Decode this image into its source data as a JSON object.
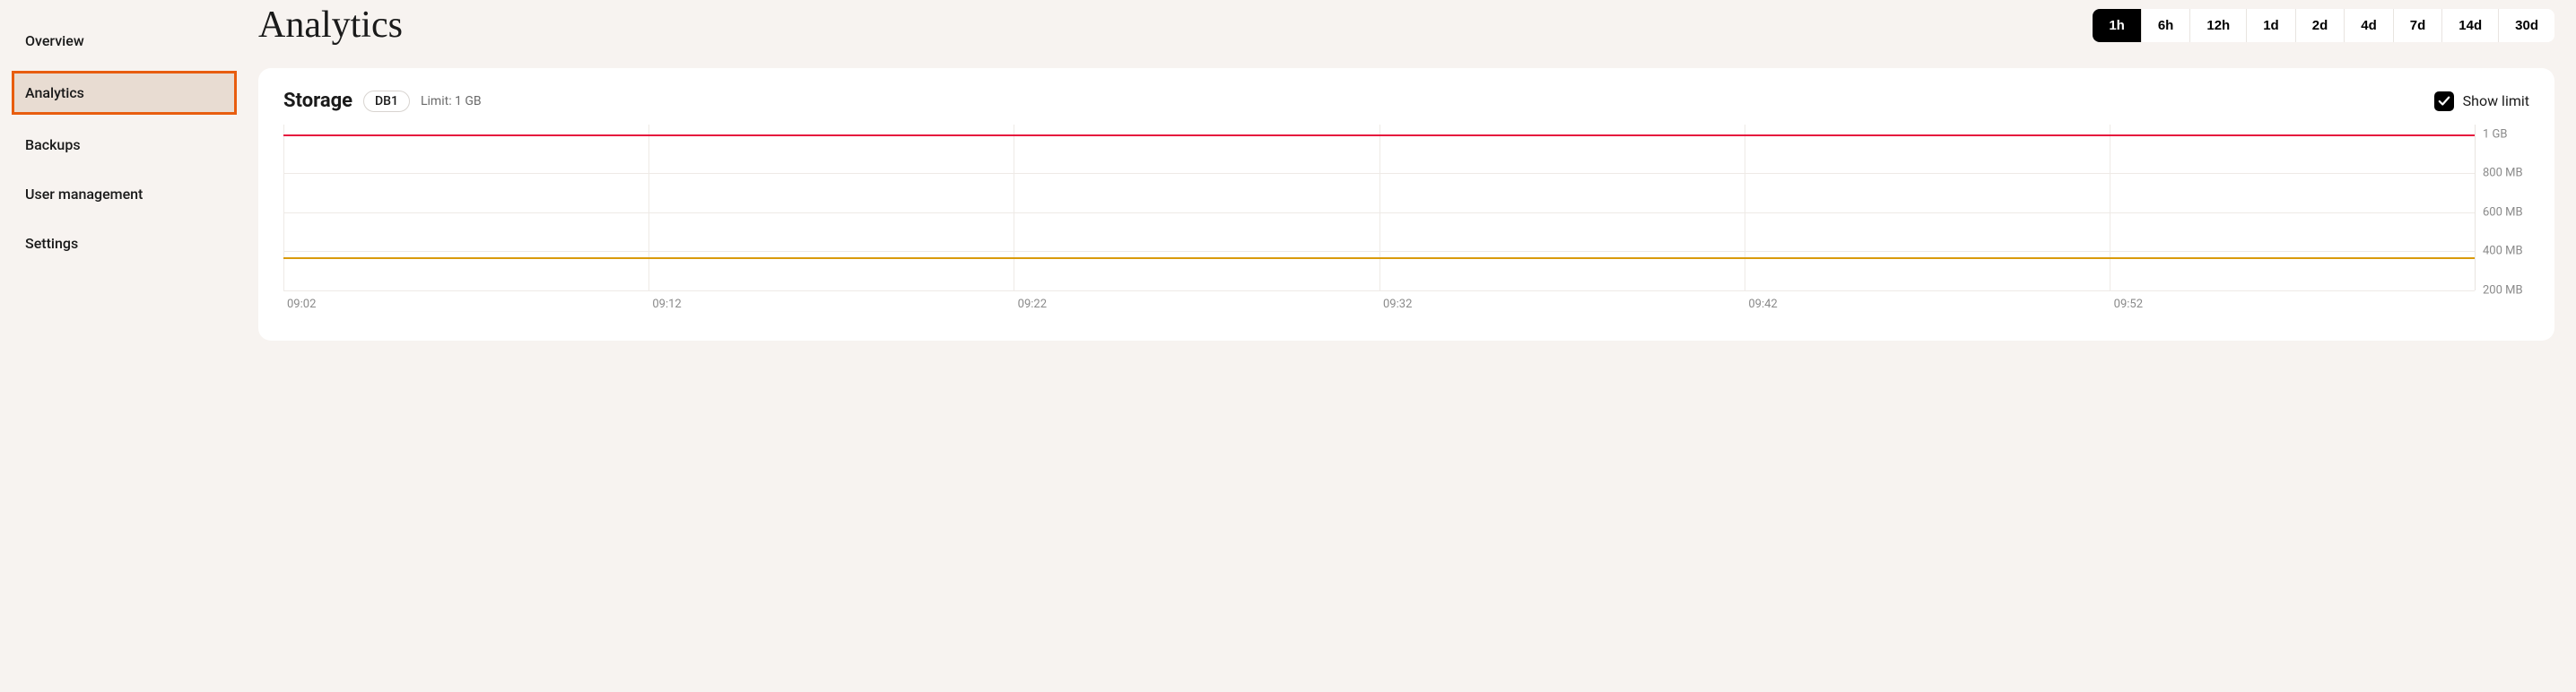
{
  "sidebar": {
    "items": [
      {
        "label": "Overview",
        "active": false
      },
      {
        "label": "Analytics",
        "active": true
      },
      {
        "label": "Backups",
        "active": false
      },
      {
        "label": "User management",
        "active": false
      },
      {
        "label": "Settings",
        "active": false
      }
    ]
  },
  "header": {
    "title": "Analytics"
  },
  "range": {
    "options": [
      "1h",
      "6h",
      "12h",
      "1d",
      "2d",
      "4d",
      "7d",
      "14d",
      "30d"
    ],
    "active": "1h"
  },
  "card": {
    "title": "Storage",
    "db_badge": "DB1",
    "limit_label": "Limit: 1 GB",
    "show_limit_label": "Show limit",
    "show_limit_checked": true
  },
  "chart": {
    "type": "line",
    "background_color": "#ffffff",
    "grid_color": "#eeeae6",
    "y_axis": {
      "min_mb": 200,
      "max_mb": 1050,
      "ticks": [
        {
          "label": "1 GB",
          "value_mb": 1000
        },
        {
          "label": "800 MB",
          "value_mb": 800
        },
        {
          "label": "600 MB",
          "value_mb": 600
        },
        {
          "label": "400 MB",
          "value_mb": 400
        },
        {
          "label": "200 MB",
          "value_mb": 200
        }
      ],
      "label_color": "#8a8a8a",
      "label_fontsize": 13
    },
    "x_axis": {
      "ticks": [
        "09:02",
        "09:12",
        "09:22",
        "09:32",
        "09:42",
        "09:52"
      ],
      "label_color": "#8a8a8a",
      "label_fontsize": 13
    },
    "series": {
      "limit": {
        "value_mb": 1000,
        "color": "#e6173e",
        "line_width": 2
      },
      "usage": {
        "value_mb": 370,
        "color": "#d99a0b",
        "line_width": 2
      }
    }
  },
  "colors": {
    "page_bg": "#f7f3f0",
    "card_bg": "#ffffff",
    "sidebar_active_bg": "#e8dcd2",
    "sidebar_active_border": "#e85d0f",
    "range_active_bg": "#000000",
    "range_active_fg": "#ffffff",
    "text": "#1a1a1a",
    "muted": "#8a8a8a"
  }
}
